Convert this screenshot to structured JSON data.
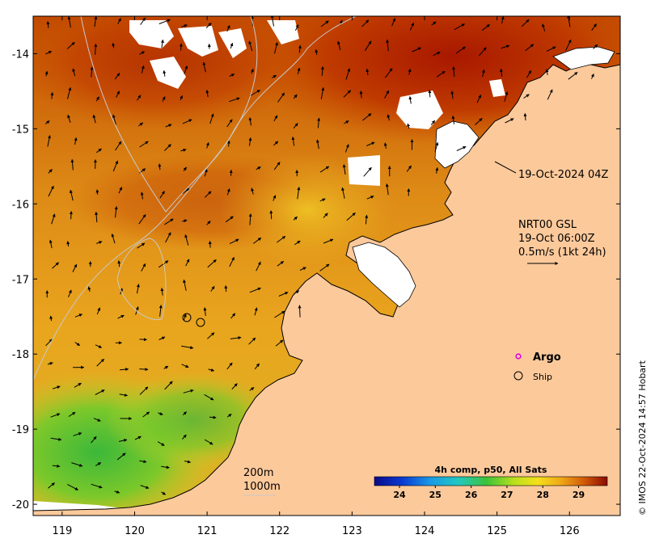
{
  "map": {
    "product_time": "19-Oct-2024 04Z",
    "current_product": "NRT00 GSL",
    "current_time": "19-Oct 06:00Z",
    "current_scale": "0.5m/s (1kt 24h)",
    "composite_label": "4h comp, p50, All Sats",
    "colorbar_ticks": [
      "24",
      "25",
      "26",
      "27",
      "28",
      "29"
    ],
    "colorbar_range": [
      23.3,
      29.8
    ],
    "legend_argo": "Argo",
    "legend_ship": "Ship",
    "isobath_200": "200m",
    "isobath_1000": "1000m",
    "credit": "© IMOS 22-Oct-2024 14:57 Hobart",
    "lat_ticks": [
      "-14",
      "-15",
      "-16",
      "-17",
      "-18",
      "-19",
      "-20"
    ],
    "lon_ticks": [
      "119",
      "120",
      "121",
      "122",
      "123",
      "124",
      "125",
      "126"
    ],
    "lon_range": [
      118.6,
      126.7
    ],
    "lat_range": [
      -20.15,
      -13.5
    ],
    "colors": {
      "land": "#fcc99b",
      "sst_warm": "#c83e00",
      "sst_mid": "#e8901a",
      "sst_cool": "#4cc026",
      "argo": "#dd00dd"
    }
  }
}
